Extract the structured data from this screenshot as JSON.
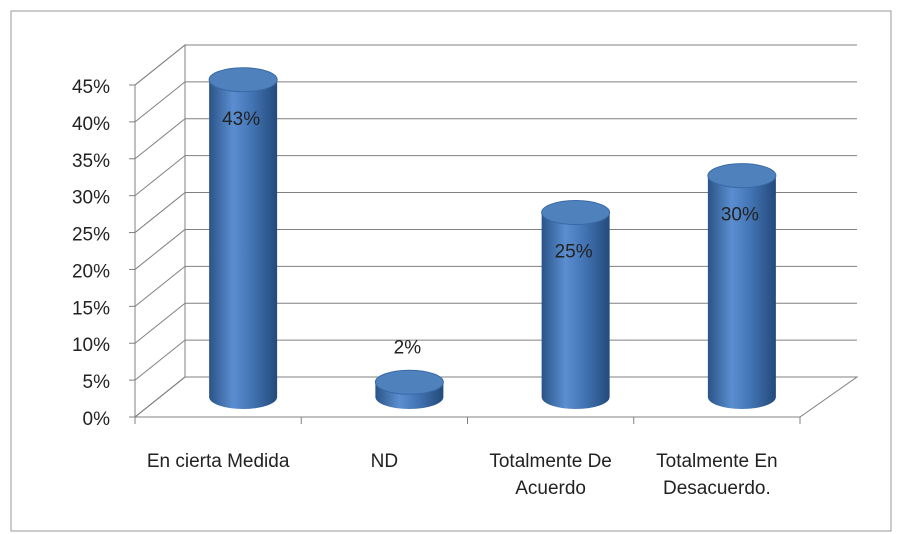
{
  "chart_data": {
    "type": "bar3d",
    "categories": [
      "En cierta Medida",
      "ND",
      "Totalmente De Acuerdo",
      "Totalmente En Desacuerdo."
    ],
    "values": [
      43,
      2,
      25,
      30
    ],
    "value_labels": [
      "43%",
      "2%",
      "25%",
      "30%"
    ],
    "color": "#4f81bd",
    "ylim": [
      0,
      45
    ],
    "yticks": [
      {
        "value": 0,
        "label": "0%"
      },
      {
        "value": 5,
        "label": "5%"
      },
      {
        "value": 10,
        "label": "10%"
      },
      {
        "value": 15,
        "label": "15%"
      },
      {
        "value": 20,
        "label": "20%"
      },
      {
        "value": 25,
        "label": "25%"
      },
      {
        "value": 30,
        "label": "30%"
      },
      {
        "value": 35,
        "label": "35%"
      },
      {
        "value": 40,
        "label": "40%"
      },
      {
        "value": 45,
        "label": "45%"
      }
    ],
    "grid": true
  }
}
